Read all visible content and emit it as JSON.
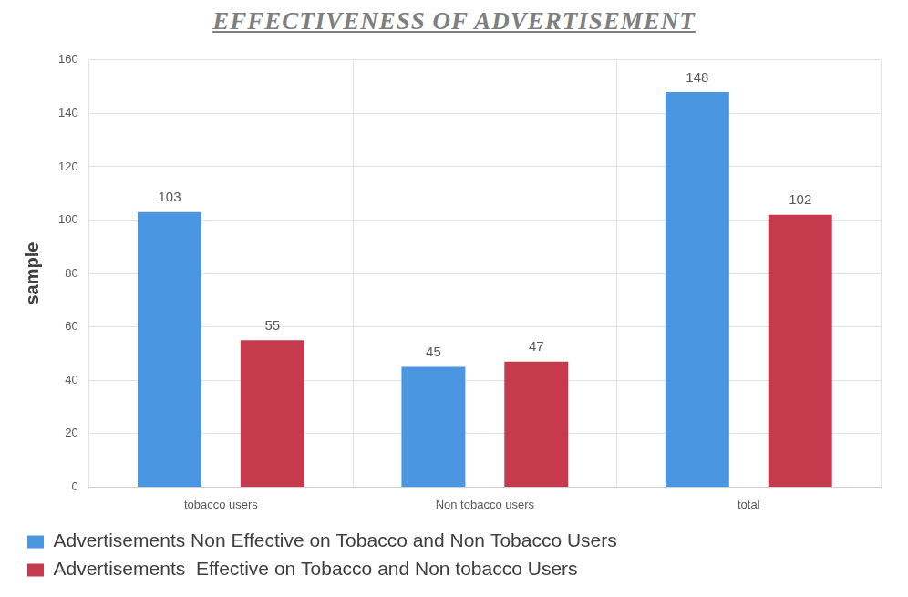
{
  "chart_data": {
    "type": "bar",
    "title": "EFFECTIVENESS OF ADVERTISEMENT",
    "y_label": "sample",
    "categories": [
      "tobacco users",
      "Non tobacco users",
      "total"
    ],
    "series": [
      {
        "name": "Advertisements Non Effective on Tobacco and Non Tobacco Users",
        "color": "#4a96e0",
        "values": [
          103,
          45,
          148
        ]
      },
      {
        "name": "Advertisements  Effective on Tobacco and Non tobacco Users",
        "color": "#c63a4e",
        "values": [
          55,
          47,
          102
        ]
      }
    ],
    "ylim": [
      0,
      160
    ],
    "yticks": [
      0,
      20,
      40,
      60,
      80,
      100,
      120,
      140,
      160
    ],
    "grid": true,
    "legend": "bottom-left",
    "data_labels": true
  }
}
